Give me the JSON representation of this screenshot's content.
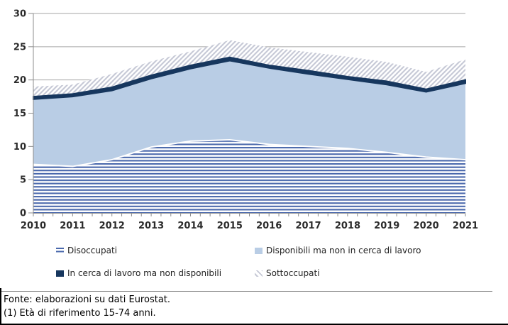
{
  "chart_data": {
    "type": "area",
    "stacked": true,
    "x_years": [
      2010,
      2011,
      2012,
      2013,
      2014,
      2015,
      2016,
      2017,
      2018,
      2019,
      2020,
      2021
    ],
    "series": [
      {
        "name": "Disoccupati",
        "swatch": "horizontal-stripes",
        "color": "#4a68ac",
        "values": [
          7.3,
          7.0,
          8.0,
          9.9,
          10.8,
          11.0,
          10.3,
          10.0,
          9.7,
          9.1,
          8.4,
          8.0
        ]
      },
      {
        "name": "Disponibili ma non in cerca di lavoro",
        "swatch": "solid",
        "color": "#b9cde5",
        "values": [
          9.8,
          10.5,
          10.4,
          10.3,
          10.9,
          11.9,
          11.5,
          10.9,
          10.4,
          10.2,
          9.8,
          11.5
        ]
      },
      {
        "name": "In cerca di lavoro ma non disponibili",
        "swatch": "solid",
        "color": "#17375e",
        "values": [
          0.4,
          0.4,
          0.5,
          0.5,
          0.5,
          0.5,
          0.4,
          0.5,
          0.4,
          0.5,
          0.4,
          0.5
        ]
      },
      {
        "name": "Sottoccupati",
        "swatch": "diagonal-hatch",
        "color": "#c6c9d6",
        "values": [
          1.5,
          1.4,
          2.0,
          2.1,
          2.1,
          2.6,
          2.7,
          2.8,
          3.0,
          2.9,
          2.6,
          3.1
        ]
      }
    ],
    "ylim": [
      0,
      30
    ],
    "yticks": [
      0,
      5,
      10,
      15,
      20,
      25,
      30
    ],
    "minor_xticks_per_year": 4,
    "grid": true,
    "legend_position": "below"
  },
  "colors": {
    "gridline": "#a6a6a6",
    "axis": "#8c8c8c",
    "tick_text": "#2b2b2b",
    "stripe_top_gap": "#ffffff",
    "background": "#ffffff",
    "frame": "#000000"
  },
  "footer": {
    "line1": "Fonte: elaborazioni su dati Eurostat.",
    "line2": "(1) Età di riferimento 15-74 anni."
  }
}
